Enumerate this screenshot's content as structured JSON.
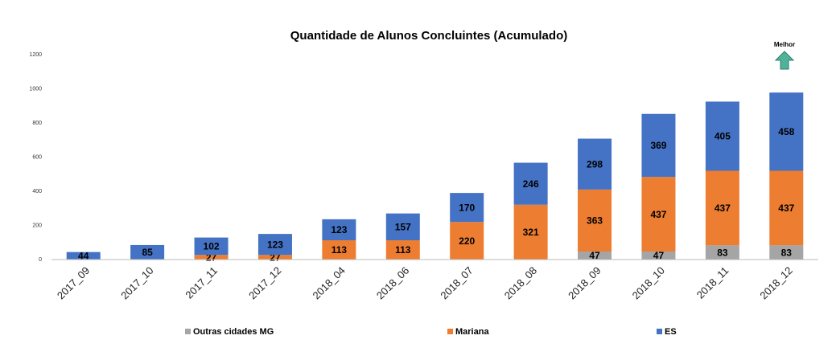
{
  "chart_data": {
    "type": "stacked_bar",
    "title": "Quantidade de Alunos Concluintes (Acumulado)",
    "annotation": "Melhor",
    "categories": [
      "2017_09",
      "2017_10",
      "2017_11",
      "2017_12",
      "2018_04",
      "2018_06",
      "2018_07",
      "2018_08",
      "2018_09",
      "2018_10",
      "2018_11",
      "2018_12"
    ],
    "series": [
      {
        "name": "Outras cidades MG",
        "color": "#a5a5a5",
        "values": [
          null,
          null,
          null,
          null,
          null,
          null,
          null,
          null,
          47,
          47,
          83,
          83
        ]
      },
      {
        "name": "Mariana",
        "color": "#ed7d31",
        "values": [
          null,
          null,
          27,
          27,
          113,
          113,
          220,
          321,
          363,
          437,
          437,
          437
        ]
      },
      {
        "name": "ES",
        "color": "#4472c4",
        "values": [
          44,
          85,
          102,
          123,
          123,
          157,
          170,
          246,
          298,
          369,
          405,
          458
        ]
      }
    ],
    "ylim": [
      0,
      1200
    ],
    "yticks": [
      0,
      200,
      400,
      600,
      800,
      1000,
      1200
    ],
    "grid": false,
    "legend": "bottom"
  }
}
